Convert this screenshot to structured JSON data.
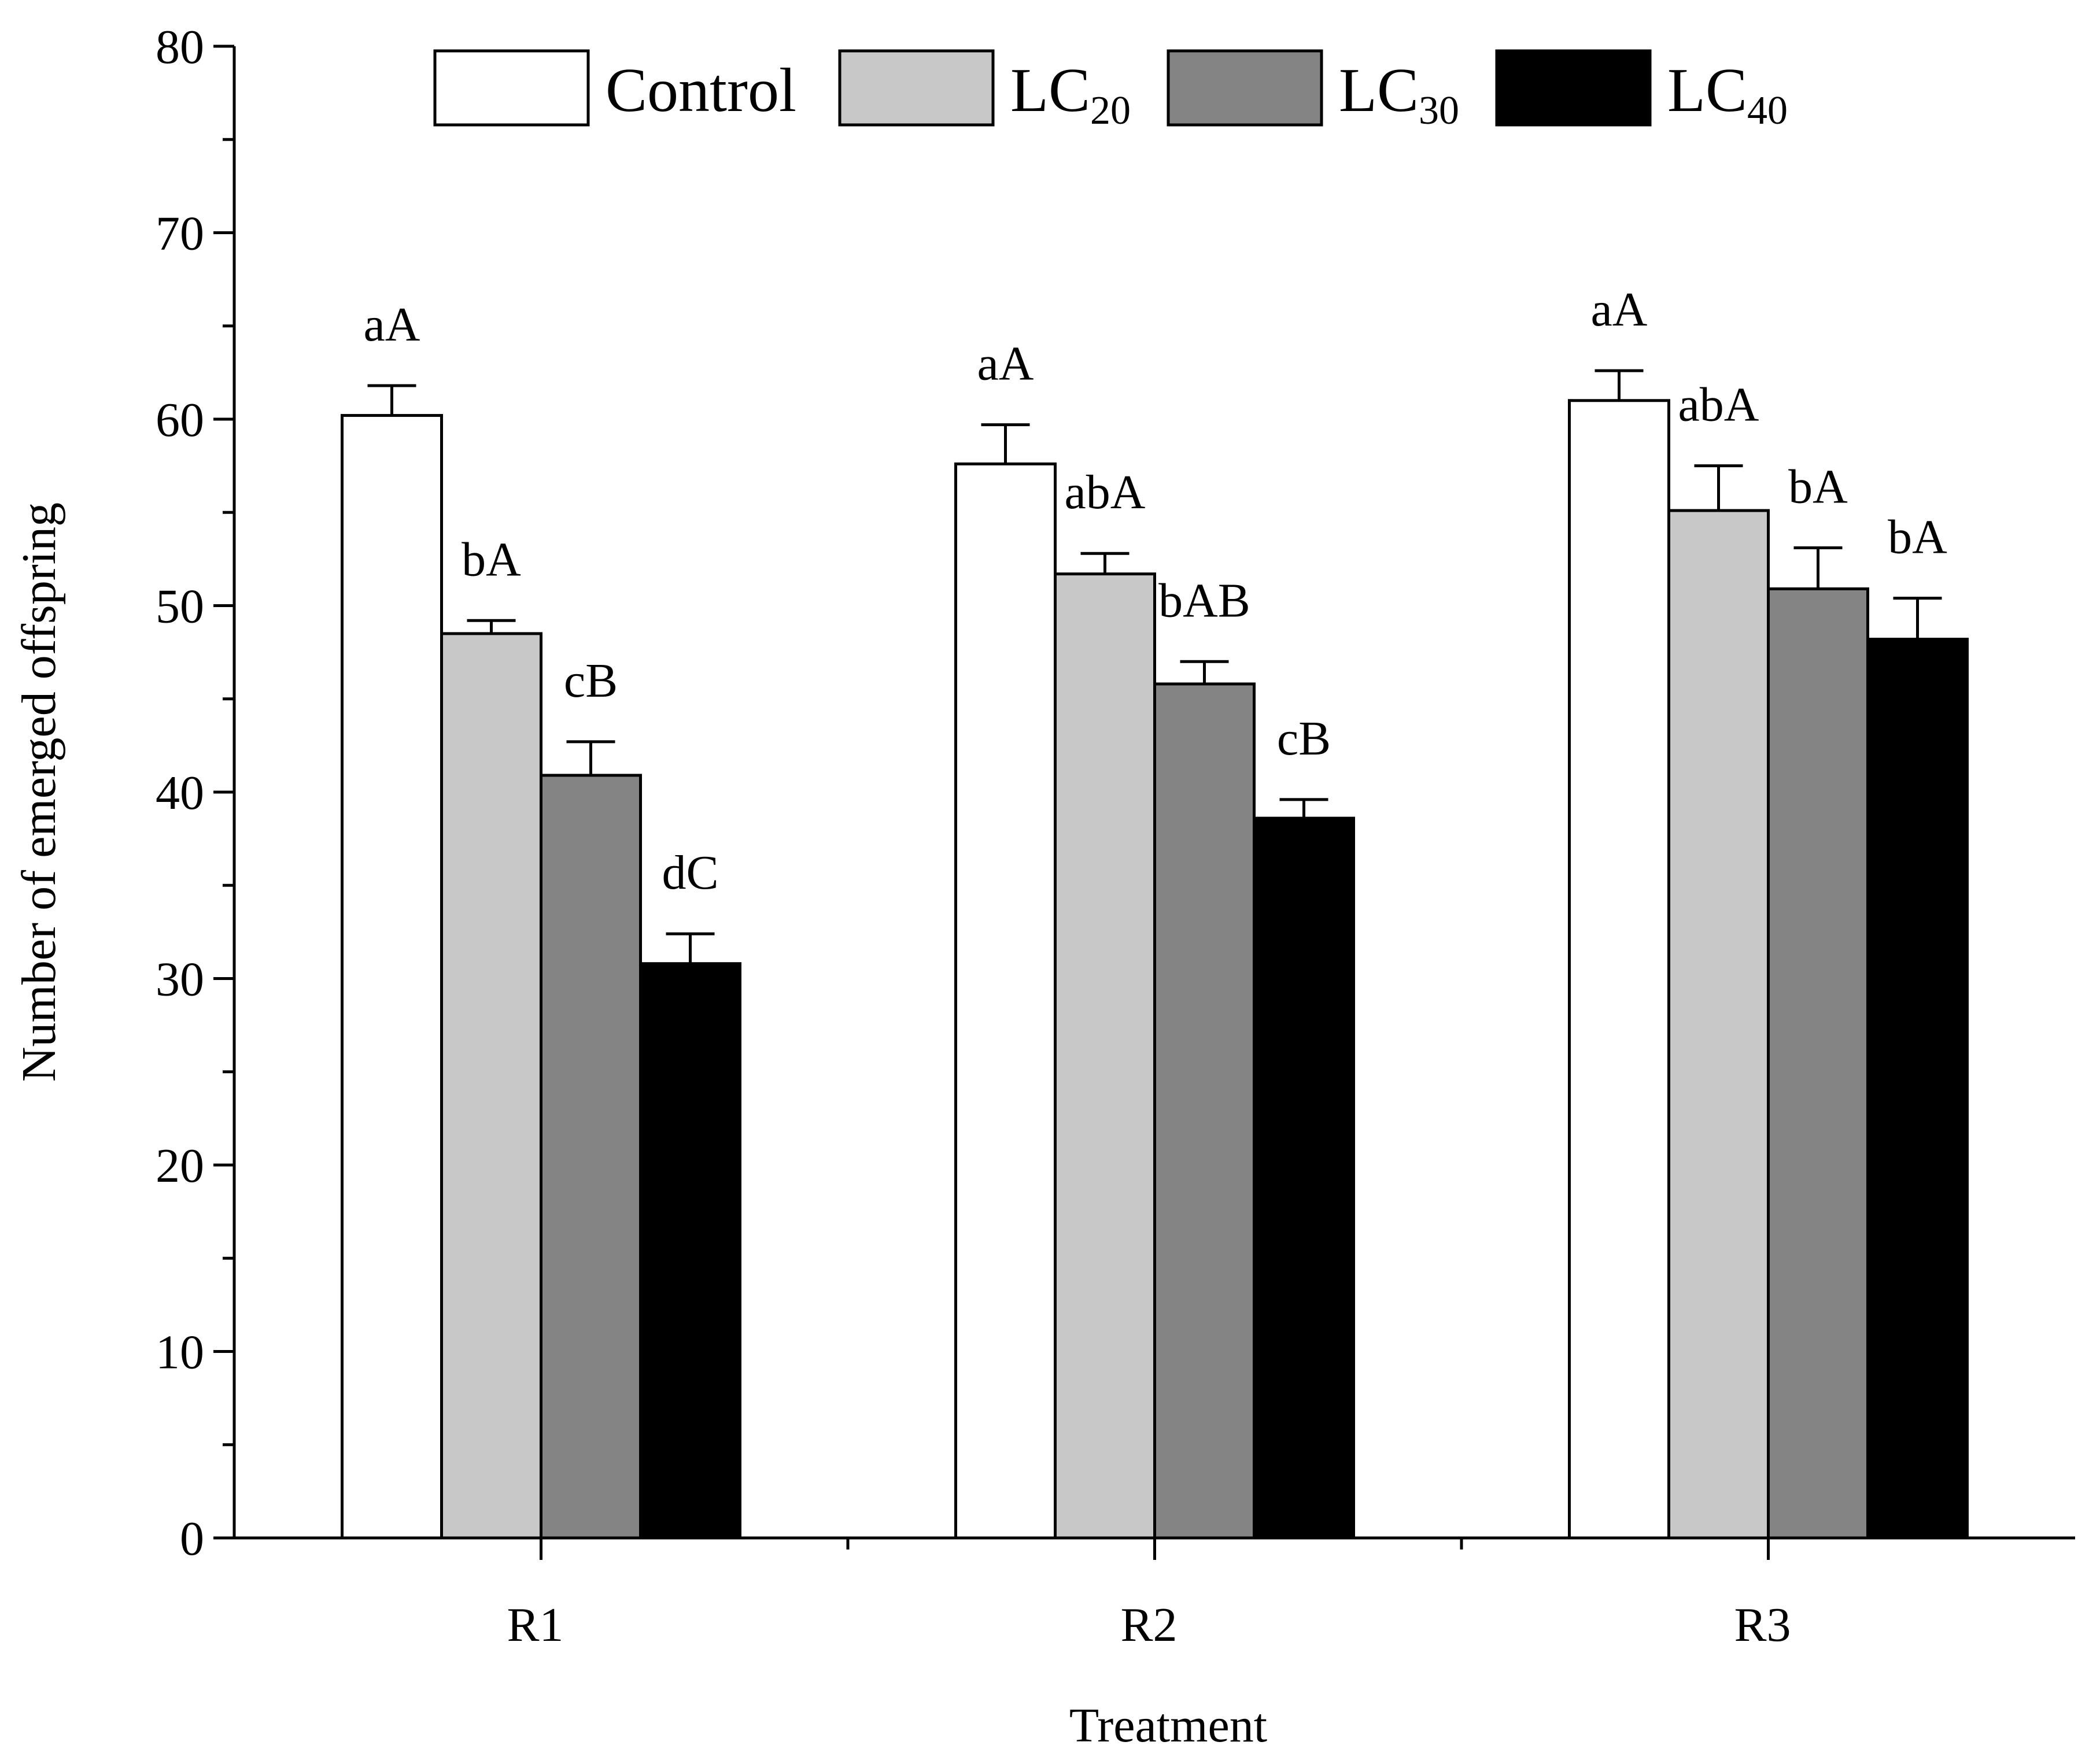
{
  "chart_data": {
    "type": "bar",
    "title": "",
    "xlabel": "Treatment",
    "ylabel": "Number of emerged offspring",
    "ylim": [
      0,
      80
    ],
    "yticks": [
      0,
      10,
      20,
      30,
      40,
      50,
      60,
      70,
      80
    ],
    "categories": [
      "R1",
      "R2",
      "R3"
    ],
    "legend_position": "top",
    "series": [
      {
        "name": "Control",
        "base": "Control",
        "sub": "",
        "color": "#ffffff",
        "values": [
          60.2,
          57.6,
          61.0
        ],
        "errors": [
          1.6,
          2.1,
          1.6
        ],
        "labels": [
          "aA",
          "aA",
          "aA"
        ]
      },
      {
        "name": "LC20",
        "base": "LC",
        "sub": "20",
        "color": "#c8c8c8",
        "values": [
          48.5,
          51.7,
          55.1
        ],
        "errors": [
          0.7,
          1.1,
          2.4
        ],
        "labels": [
          "bA",
          "abA",
          "abA"
        ]
      },
      {
        "name": "LC30",
        "base": "LC",
        "sub": "30",
        "color": "#848484",
        "values": [
          40.9,
          45.8,
          50.9
        ],
        "errors": [
          1.8,
          1.2,
          2.2
        ],
        "labels": [
          "cB",
          "bAB",
          "bA"
        ]
      },
      {
        "name": "LC40",
        "base": "LC",
        "sub": "40",
        "color": "#000000",
        "values": [
          30.8,
          38.6,
          48.2
        ],
        "errors": [
          1.6,
          1.0,
          2.2
        ],
        "labels": [
          "dC",
          "cB",
          "bA"
        ]
      }
    ]
  }
}
